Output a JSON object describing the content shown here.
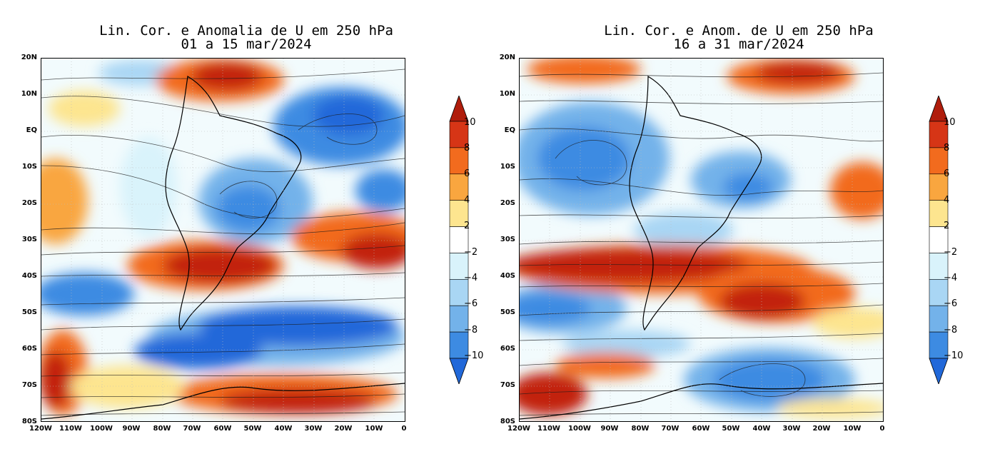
{
  "panels": [
    {
      "title_line1": "Lin. Cor. e Anomalia de U em 250 hPa",
      "title_line2": "01 a 15 mar/2024"
    },
    {
      "title_line1": "Lin. Cor. e Anom. de U em 250 hPa",
      "title_line2": "16 a 31 mar/2024"
    }
  ],
  "axes": {
    "lat_labels": [
      "20N",
      "10N",
      "EQ",
      "10S",
      "20S",
      "30S",
      "40S",
      "50S",
      "60S",
      "70S",
      "80S"
    ],
    "lon_labels": [
      "120W",
      "110W",
      "100W",
      "90W",
      "80W",
      "70W",
      "60W",
      "50W",
      "40W",
      "30W",
      "20W",
      "10W",
      "0"
    ]
  },
  "colorbar": {
    "labels": [
      "10",
      "8",
      "6",
      "4",
      "2",
      "−2",
      "−4",
      "−6",
      "−8",
      "−10"
    ],
    "colors": [
      "#b01d0c",
      "#d63516",
      "#f26b1e",
      "#f9a63f",
      "#fde58f",
      "#ffffff",
      "#d9f3fb",
      "#a9d6f4",
      "#73b2ea",
      "#3d8be2",
      "#2168d9"
    ]
  },
  "colors": {
    "neg_extreme": "#2168d9",
    "neg_strong": "#3d8be2",
    "neg_mid": "#73b2ea",
    "neg_weak": "#a9d6f4",
    "neg_faint": "#d9f3fb",
    "pos_faint": "#fff6c8",
    "pos_weak": "#fde58f",
    "pos_mid": "#f9a63f",
    "pos_strong": "#f26b1e",
    "pos_extreme": "#c2240e"
  }
}
